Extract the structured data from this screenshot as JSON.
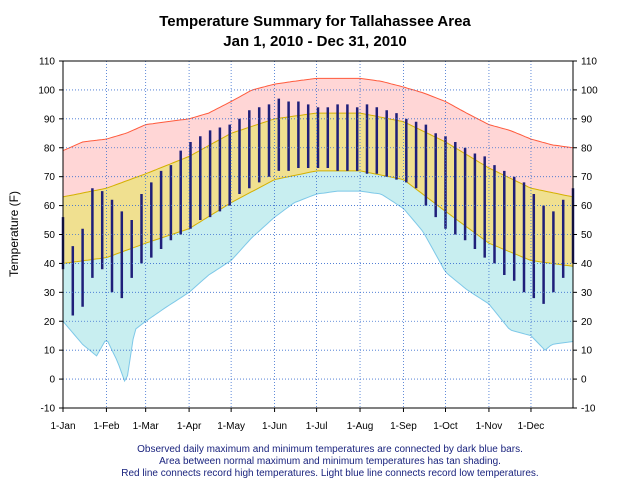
{
  "chart_data": {
    "type": "area",
    "title": "Temperature Summary for Tallahassee Area",
    "subtitle": "Jan  1, 2010 - Dec 31, 2010",
    "ylabel": "Temperature (F)",
    "xlabel": "",
    "ylim": [
      -10,
      110
    ],
    "yticks": [
      -10,
      0,
      10,
      20,
      30,
      40,
      50,
      60,
      70,
      80,
      90,
      100,
      110
    ],
    "xlim": [
      1,
      365
    ],
    "xticks": [
      {
        "day": 1,
        "label": "1-Jan"
      },
      {
        "day": 32,
        "label": "1-Feb"
      },
      {
        "day": 60,
        "label": "1-Mar"
      },
      {
        "day": 91,
        "label": "1-Apr"
      },
      {
        "day": 121,
        "label": "1-May"
      },
      {
        "day": 152,
        "label": "1-Jun"
      },
      {
        "day": 182,
        "label": "1-Jul"
      },
      {
        "day": 213,
        "label": "1-Aug"
      },
      {
        "day": 244,
        "label": "1-Sep"
      },
      {
        "day": 274,
        "label": "1-Oct"
      },
      {
        "day": 305,
        "label": "1-Nov"
      },
      {
        "day": 335,
        "label": "1-Dec"
      }
    ],
    "grid": true,
    "colors": {
      "record_high_line": "#ff5a3c",
      "record_high_fill": "#ffd6d6",
      "normal_fill": "#f0e090",
      "normal_edge": "#d4b000",
      "record_low_line": "#7ec8e8",
      "record_low_fill": "#c8eef0",
      "observed_bars": "#1f1f7a",
      "grid": "#3b6fcf"
    },
    "series": [
      {
        "key": "record_high",
        "x": [
          1,
          15,
          32,
          46,
          60,
          75,
          91,
          105,
          121,
          136,
          152,
          166,
          182,
          197,
          213,
          228,
          244,
          258,
          274,
          289,
          305,
          320,
          335,
          350,
          365
        ],
        "values": [
          79,
          82,
          83,
          85,
          88,
          89,
          90,
          92,
          96,
          100,
          102,
          103,
          104,
          104,
          104,
          103,
          101,
          99,
          96,
          92,
          88,
          86,
          83,
          81,
          80
        ]
      },
      {
        "key": "normal_high",
        "x": [
          1,
          32,
          60,
          91,
          121,
          152,
          182,
          213,
          244,
          274,
          305,
          335,
          365
        ],
        "values": [
          63,
          66,
          71,
          77,
          85,
          90,
          92,
          92,
          89,
          82,
          73,
          66,
          63
        ]
      },
      {
        "key": "normal_low",
        "x": [
          1,
          32,
          60,
          91,
          121,
          152,
          182,
          213,
          244,
          274,
          305,
          335,
          365
        ],
        "values": [
          40,
          42,
          47,
          52,
          61,
          69,
          72,
          72,
          69,
          58,
          47,
          41,
          39
        ]
      },
      {
        "key": "record_low",
        "x": [
          1,
          15,
          25,
          32,
          40,
          46,
          52,
          60,
          75,
          91,
          105,
          121,
          136,
          152,
          166,
          182,
          197,
          213,
          228,
          244,
          258,
          274,
          289,
          305,
          320,
          335,
          345,
          350,
          365
        ],
        "values": [
          20,
          12,
          8,
          14,
          6,
          -2,
          17,
          20,
          25,
          30,
          36,
          41,
          49,
          56,
          61,
          64,
          65,
          65,
          64,
          59,
          51,
          37,
          31,
          26,
          17,
          15,
          10,
          12,
          13
        ]
      },
      {
        "key": "observed",
        "x": [
          1,
          8,
          15,
          22,
          29,
          36,
          43,
          50,
          57,
          64,
          71,
          78,
          85,
          92,
          99,
          106,
          113,
          120,
          127,
          134,
          141,
          148,
          155,
          162,
          169,
          176,
          183,
          190,
          197,
          204,
          211,
          218,
          225,
          232,
          239,
          246,
          253,
          260,
          267,
          274,
          281,
          288,
          295,
          302,
          309,
          316,
          323,
          330,
          337,
          344,
          351,
          358,
          365
        ],
        "high": [
          56,
          46,
          52,
          66,
          65,
          62,
          58,
          55,
          64,
          68,
          72,
          74,
          79,
          82,
          84,
          86,
          87,
          88,
          90,
          93,
          94,
          95,
          97,
          96,
          96,
          95,
          94,
          94,
          95,
          95,
          94,
          95,
          94,
          93,
          92,
          90,
          89,
          88,
          85,
          84,
          82,
          80,
          78,
          77,
          74,
          72,
          70,
          68,
          64,
          60,
          58,
          62,
          66
        ],
        "low": [
          38,
          22,
          25,
          35,
          38,
          30,
          28,
          35,
          40,
          42,
          45,
          48,
          50,
          52,
          55,
          56,
          58,
          60,
          64,
          66,
          68,
          70,
          72,
          72,
          73,
          73,
          73,
          73,
          72,
          72,
          72,
          71,
          71,
          70,
          69,
          68,
          66,
          60,
          56,
          52,
          50,
          48,
          45,
          42,
          40,
          36,
          34,
          30,
          28,
          26,
          30,
          35,
          40
        ]
      }
    ],
    "notes": [
      "Observed daily maximum and minimum temperatures are connected by dark blue bars.",
      "Area between normal maximum and minimum temperatures has tan shading.",
      "Red line connects record high temperatures. Light blue line connects record low temperatures."
    ]
  }
}
